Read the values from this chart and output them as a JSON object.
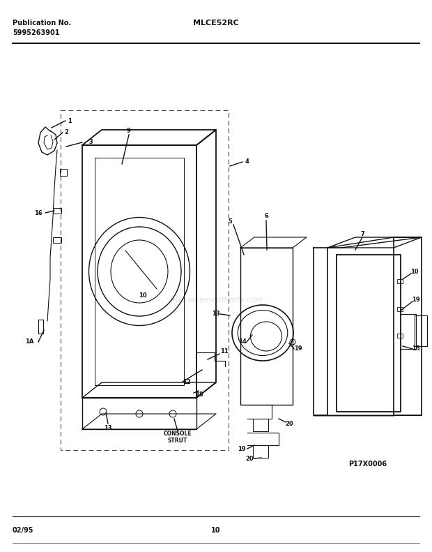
{
  "pub_label": "Publication No.",
  "pub_number": "5995263901",
  "model": "MLCE52RC",
  "date": "02/95",
  "page": "10",
  "diagram_ref": "P17X0006",
  "watermark": "eReplacementParts.com",
  "bg_color": "#ffffff",
  "line_color": "#111111",
  "dashed_color": "#444444"
}
